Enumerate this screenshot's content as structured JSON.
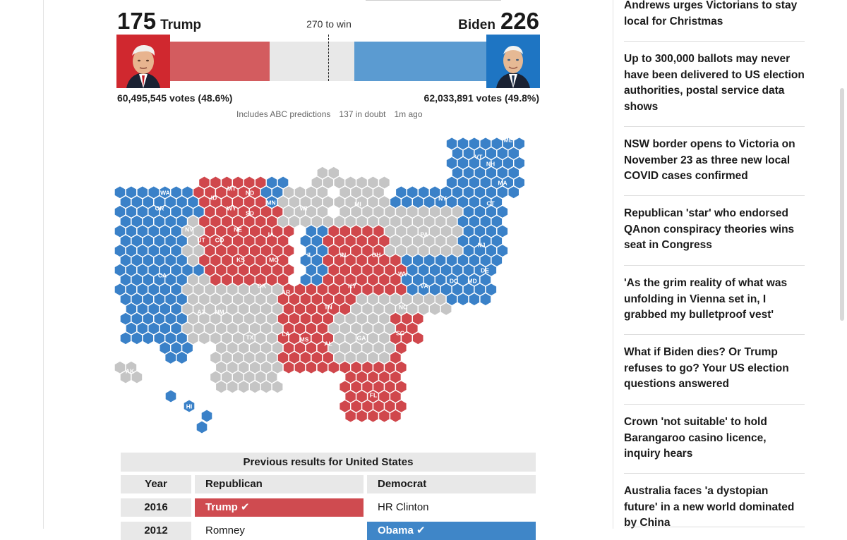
{
  "tally": {
    "trump": {
      "electoral_votes": "175",
      "name": "Trump",
      "popular": "60,495,545 votes (48.6%)",
      "color": "#d35c5f"
    },
    "biden": {
      "electoral_votes": "226",
      "name": "Biden",
      "popular": "62,033,891 votes (49.8%)",
      "color": "#5b9bd1"
    },
    "threshold": "270 to win",
    "meta": [
      "Includes ABC predictions",
      "137 in doubt",
      "1m ago"
    ]
  },
  "map": {
    "colors": {
      "rep": "#d0474c",
      "dem": "#3a81c8",
      "undecided": "#c5c5c5"
    },
    "labels": [
      "ME",
      "VT",
      "NH",
      "WA",
      "MT",
      "ND",
      "MA",
      "OR",
      "ID",
      "WY",
      "SD",
      "MN",
      "WI",
      "MI",
      "NY",
      "CT",
      "RI",
      "NV",
      "NE",
      "UT",
      "CO",
      "IA",
      "PA",
      "NJ",
      "CA",
      "IL",
      "IN",
      "OH",
      "KS",
      "MO",
      "WV",
      "DE",
      "OK",
      "AR",
      "KY",
      "VA",
      "DC",
      "MD",
      "TN",
      "NC",
      "AZ",
      "NM",
      "TX",
      "LA",
      "MS",
      "AL",
      "GA",
      "SC",
      "FL",
      "AK",
      "HI"
    ]
  },
  "previous_results": {
    "title": "Previous results for United States",
    "headers": {
      "year": "Year",
      "rep": "Republican",
      "dem": "Democrat"
    },
    "rows": [
      {
        "year": "2016",
        "rep": "Trump ✔",
        "dem": "HR Clinton",
        "winner": "rep"
      },
      {
        "year": "2012",
        "rep": "Romney",
        "dem": "Obama ✔",
        "winner": "dem"
      }
    ]
  },
  "sidebar": {
    "stories": [
      "Andrews urges Victorians to stay local for Christmas",
      "Up to 300,000 ballots may never have been delivered to US election authorities, postal service data shows",
      "NSW border opens to Victoria on November 23 as three new local COVID cases confirmed",
      "Republican 'star' who endorsed QAnon conspiracy theories wins seat in Congress",
      "'As the grim reality of what was unfolding in Vienna set in, I grabbed my bulletproof vest'",
      "What if Biden dies? Or Trump refuses to go? Your US election questions answered",
      "Crown 'not suitable' to hold Barangaroo casino licence, inquiry hears",
      "Australia faces 'a dystopian future' in a new world dominated by China"
    ]
  }
}
